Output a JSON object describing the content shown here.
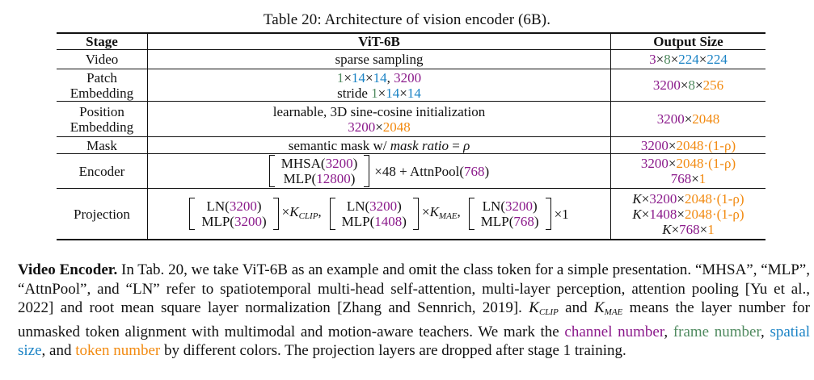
{
  "caption": "Table 20: Architecture of vision encoder (6B).",
  "headers": {
    "stage": "Stage",
    "model": "ViT-6B",
    "output": "Output Size"
  },
  "symbols": {
    "times": "×",
    "cdot": "·",
    "rho": "ρ",
    "one_minus_rho": "(1-ρ)",
    "K": "K",
    "CLIP": "CLIP",
    "MAE": "MAE",
    "comma": ",",
    "comma_space": ", "
  },
  "rows": {
    "video": {
      "stage": "Video",
      "model": "sparse sampling",
      "out": {
        "c": "3",
        "t": "8",
        "s1": "224",
        "s2": "224"
      }
    },
    "patch": {
      "stage1": "Patch",
      "stage2": "Embedding",
      "m": {
        "c": "1",
        "t": "14",
        "s": "14",
        "n": "3200",
        "stride": "stride "
      },
      "out": {
        "c": "3200",
        "t": "8",
        "n": "256"
      }
    },
    "position": {
      "stage1": "Position",
      "stage2": "Embedding",
      "model": "learnable, 3D sine-cosine initialization",
      "m": {
        "c": "3200",
        "n": "2048"
      },
      "out": {
        "c": "3200",
        "n": "2048"
      }
    },
    "mask": {
      "stage": "Mask",
      "model_prefix": "semantic mask w/ ",
      "model_italic": "mask ratio",
      "model_eq": " = ",
      "out": {
        "c": "3200",
        "n": "2048"
      }
    },
    "encoder": {
      "stage": "Encoder",
      "mhsa": "MHSA(",
      "mhsa_val": "3200",
      "close": ")",
      "mlp": "MLP(",
      "mlp_val": "12800",
      "repeat": "×48 + AttnPool(",
      "attn_val": "768",
      "out": {
        "c": "3200",
        "n": "2048",
        "c2": "768",
        "one": "1"
      }
    },
    "projection": {
      "stage": "Projection",
      "ln": "LN(",
      "mlp": "MLP(",
      "b1": {
        "ln": "3200",
        "mlp": "3200"
      },
      "b2": {
        "ln": "3200",
        "mlp": "1408"
      },
      "b3": {
        "ln": "3200",
        "mlp": "768",
        "times1": "×1"
      },
      "out": {
        "l1": {
          "c": "3200",
          "n": "2048"
        },
        "l2": {
          "c": "1408",
          "n": "2048"
        },
        "l3": {
          "c": "768",
          "n": "1"
        }
      }
    }
  },
  "paragraph": {
    "heading": "Video Encoder.",
    "t1": " In Tab. 20, we take ViT-6B as an example and omit the class token for a simple presentation. “MHSA”, “MLP”, “AttnPool”, and “LN” refer to spatiotemporal multi-head self-attention, multi-layer perception, attention pooling [Yu et al., 2022] and root mean square layer normalization [Zhang and Sennrich, 2019]. ",
    "t2": " and ",
    "t3": " means the layer number for unmasked token alignment with multimodal and motion-aware teachers. We mark the ",
    "channel": "channel number",
    "frame": "frame number",
    "spatial": "spatial size",
    "t4": ", and ",
    "token": "token number",
    "t5": " by different colors. The projection layers are dropped after stage 1 training."
  }
}
